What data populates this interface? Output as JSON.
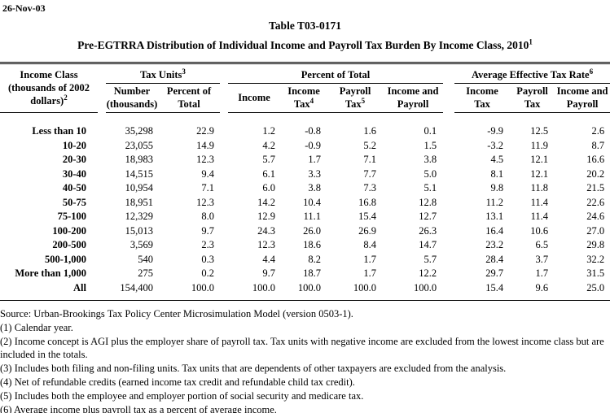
{
  "colors": {
    "text": "#000000",
    "background": "#ffffff"
  },
  "header": {
    "date": "26-Nov-03",
    "title": "Table T03-0171",
    "subtitle": "Pre-EGTRRA Distribution of Individual Income and Payroll Tax Burden By Income Class, 2010",
    "subtitle_sup": "1"
  },
  "table": {
    "col1_header": {
      "line1": "Income Class",
      "line2": "(thousands of 2002",
      "line3": "dollars)",
      "sup": "2"
    },
    "groups": [
      {
        "label": "Tax Units",
        "sup": "3"
      },
      {
        "label": "Percent of Total",
        "sup": ""
      },
      {
        "label": "Average Effective Tax Rate",
        "sup": "6"
      }
    ],
    "subheaders": [
      {
        "line1": "Number",
        "line2": "(thousands)",
        "sup": ""
      },
      {
        "line1": "Percent of",
        "line2": "Total",
        "sup": ""
      },
      {
        "line1": "Income",
        "line2": "",
        "sup": ""
      },
      {
        "line1": "Income",
        "line2": "Tax",
        "sup": "4"
      },
      {
        "line1": "Payroll",
        "line2": "Tax",
        "sup": "5"
      },
      {
        "line1": "Income and",
        "line2": "Payroll",
        "sup": ""
      },
      {
        "line1": "Income",
        "line2": "Tax",
        "sup": ""
      },
      {
        "line1": "Payroll",
        "line2": "Tax",
        "sup": ""
      },
      {
        "line1": "Income and",
        "line2": "Payroll",
        "sup": ""
      }
    ],
    "rows": [
      {
        "label": "Less than 10",
        "values": [
          "35,298",
          "22.9",
          "1.2",
          "-0.8",
          "1.6",
          "0.1",
          "-9.9",
          "12.5",
          "2.6"
        ]
      },
      {
        "label": "10-20",
        "values": [
          "23,055",
          "14.9",
          "4.2",
          "-0.9",
          "5.2",
          "1.5",
          "-3.2",
          "11.9",
          "8.7"
        ]
      },
      {
        "label": "20-30",
        "values": [
          "18,983",
          "12.3",
          "5.7",
          "1.7",
          "7.1",
          "3.8",
          "4.5",
          "12.1",
          "16.6"
        ]
      },
      {
        "label": "30-40",
        "values": [
          "14,515",
          "9.4",
          "6.1",
          "3.3",
          "7.7",
          "5.0",
          "8.1",
          "12.1",
          "20.2"
        ]
      },
      {
        "label": "40-50",
        "values": [
          "10,954",
          "7.1",
          "6.0",
          "3.8",
          "7.3",
          "5.1",
          "9.8",
          "11.8",
          "21.5"
        ]
      },
      {
        "label": "50-75",
        "values": [
          "18,951",
          "12.3",
          "14.2",
          "10.4",
          "16.8",
          "12.8",
          "11.2",
          "11.4",
          "22.6"
        ]
      },
      {
        "label": "75-100",
        "values": [
          "12,329",
          "8.0",
          "12.9",
          "11.1",
          "15.4",
          "12.7",
          "13.1",
          "11.4",
          "24.6"
        ]
      },
      {
        "label": "100-200",
        "values": [
          "15,013",
          "9.7",
          "24.3",
          "26.0",
          "26.9",
          "26.3",
          "16.4",
          "10.6",
          "27.0"
        ]
      },
      {
        "label": "200-500",
        "values": [
          "3,569",
          "2.3",
          "12.3",
          "18.6",
          "8.4",
          "14.7",
          "23.2",
          "6.5",
          "29.8"
        ]
      },
      {
        "label": "500-1,000",
        "values": [
          "540",
          "0.3",
          "4.4",
          "8.2",
          "1.7",
          "5.7",
          "28.4",
          "3.7",
          "32.2"
        ]
      },
      {
        "label": "More than 1,000",
        "values": [
          "275",
          "0.2",
          "9.7",
          "18.7",
          "1.7",
          "12.2",
          "29.7",
          "1.7",
          "31.5"
        ]
      },
      {
        "label": "All",
        "values": [
          "154,400",
          "100.0",
          "100.0",
          "100.0",
          "100.0",
          "100.0",
          "15.4",
          "9.6",
          "25.0"
        ]
      }
    ]
  },
  "footnotes": [
    "Source: Urban-Brookings Tax Policy Center Microsimulation Model (version 0503-1).",
    "(1) Calendar year.",
    "(2) Income concept is AGI plus the employer share of payroll tax.  Tax units with negative income are excluded from the lowest income class but are included in the totals.",
    "(3) Includes both filing and non-filing units.  Tax units that are dependents of other taxpayers are excluded from the analysis.",
    "(4) Net of refundable credits (earned income tax credit and refundable child tax credit).",
    "(5) Includes both the employee and employer portion of social security and medicare tax.",
    "(6) Average income plus payroll tax as a percent of average income."
  ]
}
